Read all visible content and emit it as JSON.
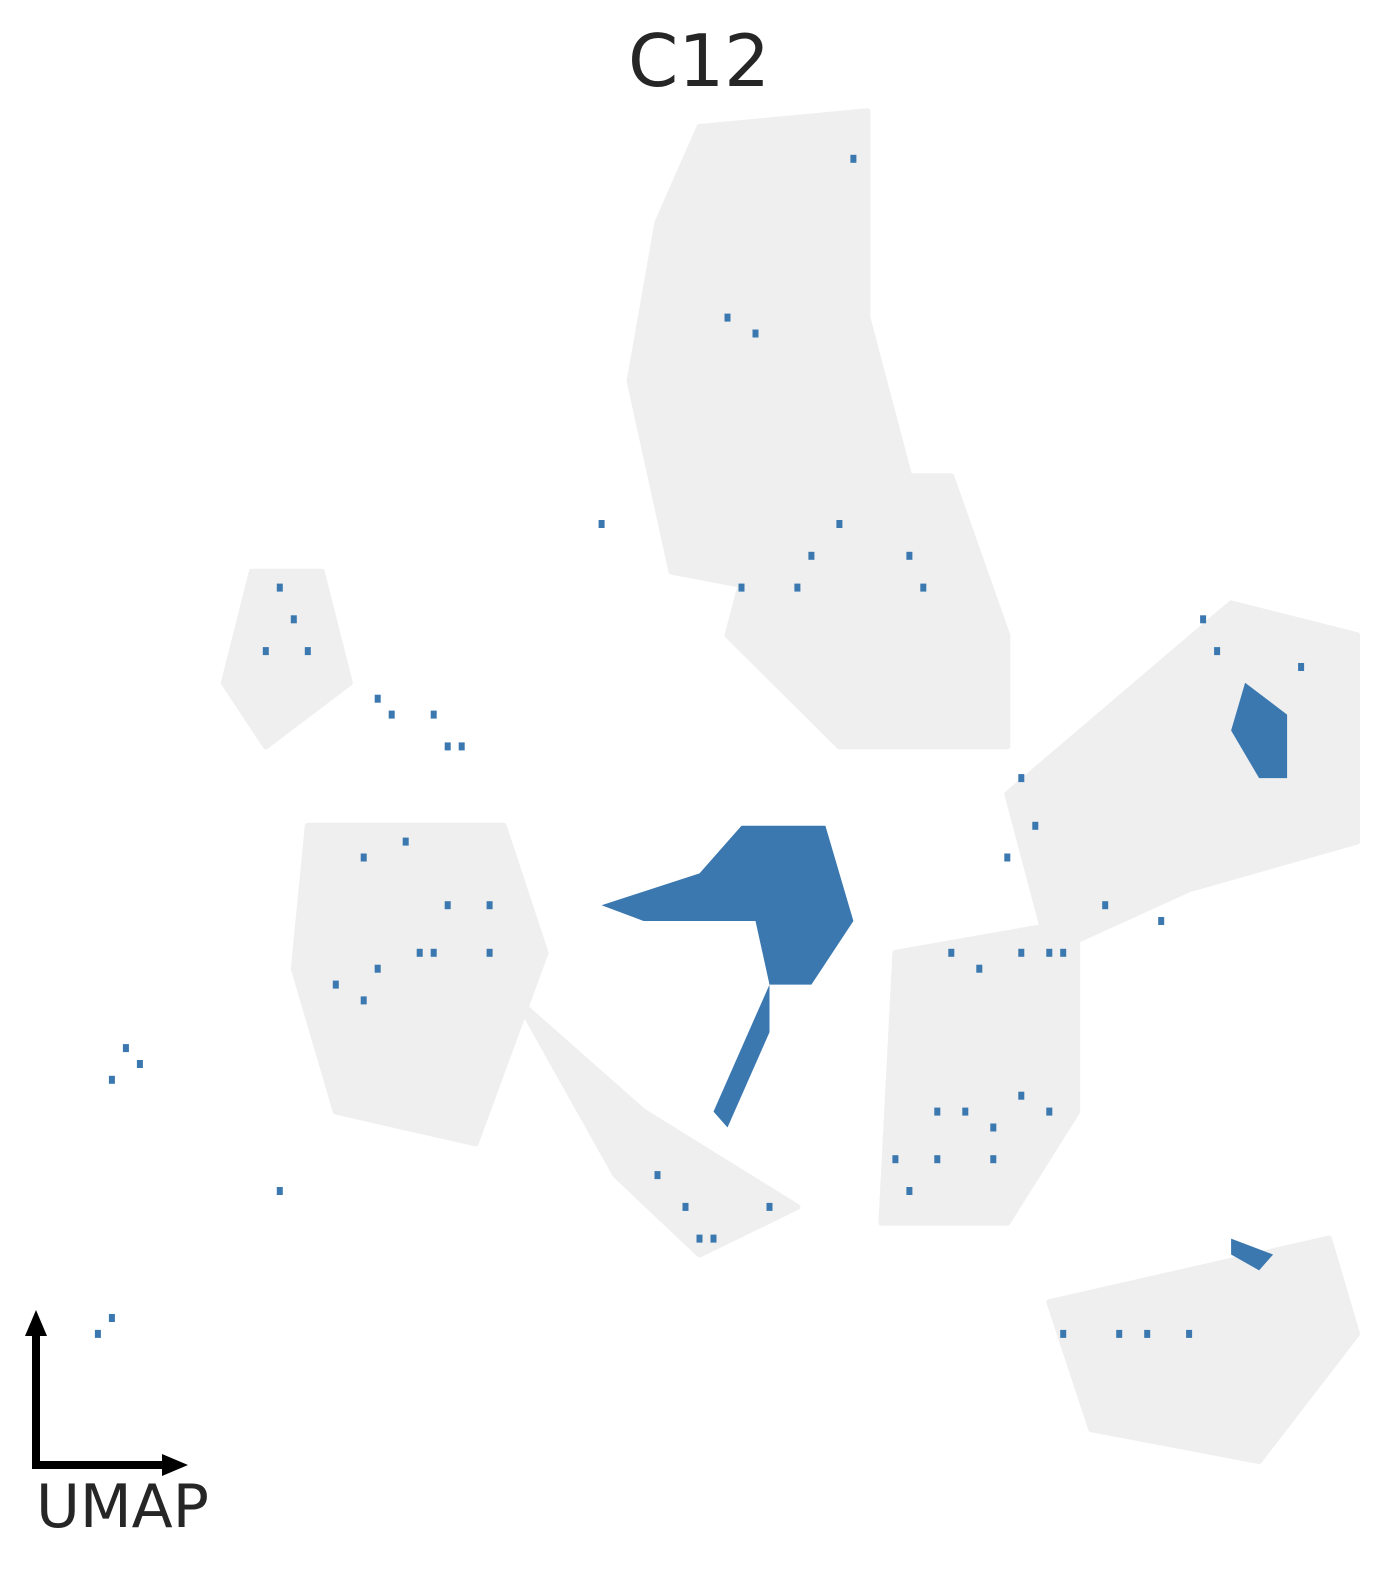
{
  "chart_data": {
    "type": "scatter",
    "title": "C12",
    "axis_label": "UMAP",
    "grid": false,
    "legend": "none",
    "colors": {
      "background_cells": "#efefef",
      "highlighted_cells": "#3b78b0",
      "axis_arrows": "#000000",
      "text": "#262626"
    },
    "series": [
      {
        "role": "background",
        "regions": [
          {
            "name": "top-cluster",
            "points": [
              [
                0.5,
                0.08
              ],
              [
                0.62,
                0.07
              ],
              [
                0.62,
                0.2
              ],
              [
                0.65,
                0.3
              ],
              [
                0.6,
                0.38
              ],
              [
                0.48,
                0.36
              ],
              [
                0.45,
                0.24
              ],
              [
                0.47,
                0.14
              ]
            ]
          },
          {
            "name": "upper-right-band",
            "points": [
              [
                0.55,
                0.3
              ],
              [
                0.68,
                0.3
              ],
              [
                0.72,
                0.4
              ],
              [
                0.72,
                0.47
              ],
              [
                0.6,
                0.47
              ],
              [
                0.52,
                0.4
              ]
            ]
          },
          {
            "name": "left-upper-cluster",
            "points": [
              [
                0.18,
                0.36
              ],
              [
                0.23,
                0.36
              ],
              [
                0.25,
                0.43
              ],
              [
                0.19,
                0.47
              ],
              [
                0.16,
                0.43
              ]
            ]
          },
          {
            "name": "left-main-cluster",
            "points": [
              [
                0.22,
                0.52
              ],
              [
                0.36,
                0.52
              ],
              [
                0.39,
                0.6
              ],
              [
                0.34,
                0.72
              ],
              [
                0.24,
                0.7
              ],
              [
                0.21,
                0.61
              ]
            ]
          },
          {
            "name": "right-arm",
            "points": [
              [
                0.72,
                0.5
              ],
              [
                0.88,
                0.38
              ],
              [
                0.97,
                0.4
              ],
              [
                0.97,
                0.53
              ],
              [
                0.85,
                0.56
              ],
              [
                0.75,
                0.6
              ]
            ]
          },
          {
            "name": "lower-middle",
            "points": [
              [
                0.37,
                0.63
              ],
              [
                0.46,
                0.7
              ],
              [
                0.57,
                0.76
              ],
              [
                0.5,
                0.79
              ],
              [
                0.44,
                0.74
              ]
            ]
          },
          {
            "name": "lower-right",
            "points": [
              [
                0.64,
                0.6
              ],
              [
                0.77,
                0.58
              ],
              [
                0.77,
                0.7
              ],
              [
                0.72,
                0.77
              ],
              [
                0.63,
                0.77
              ]
            ]
          },
          {
            "name": "bottom-right",
            "points": [
              [
                0.75,
                0.82
              ],
              [
                0.85,
                0.8
              ],
              [
                0.95,
                0.78
              ],
              [
                0.97,
                0.84
              ],
              [
                0.9,
                0.92
              ],
              [
                0.78,
                0.9
              ]
            ]
          }
        ]
      },
      {
        "role": "highlighted",
        "name": "C12",
        "regions": [
          {
            "name": "central-blob",
            "points": [
              [
                0.43,
                0.57
              ],
              [
                0.5,
                0.55
              ],
              [
                0.53,
                0.52
              ],
              [
                0.59,
                0.52
              ],
              [
                0.61,
                0.58
              ],
              [
                0.58,
                0.62
              ],
              [
                0.55,
                0.62
              ],
              [
                0.54,
                0.58
              ],
              [
                0.46,
                0.58
              ]
            ]
          },
          {
            "name": "tail",
            "points": [
              [
                0.55,
                0.62
              ],
              [
                0.54,
                0.64
              ],
              [
                0.51,
                0.7
              ],
              [
                0.52,
                0.71
              ],
              [
                0.55,
                0.65
              ]
            ]
          },
          {
            "name": "right-cluster-dense",
            "points": [
              [
                0.89,
                0.43
              ],
              [
                0.92,
                0.45
              ],
              [
                0.92,
                0.49
              ],
              [
                0.9,
                0.49
              ],
              [
                0.88,
                0.46
              ]
            ]
          },
          {
            "name": "bottom-right-dense",
            "points": [
              [
                0.88,
                0.78
              ],
              [
                0.91,
                0.79
              ],
              [
                0.9,
                0.8
              ],
              [
                0.88,
                0.79
              ]
            ]
          }
        ],
        "scatter": [
          [
            0.61,
            0.1
          ],
          [
            0.52,
            0.2
          ],
          [
            0.54,
            0.21
          ],
          [
            0.43,
            0.33
          ],
          [
            0.6,
            0.33
          ],
          [
            0.58,
            0.35
          ],
          [
            0.57,
            0.37
          ],
          [
            0.53,
            0.37
          ],
          [
            0.65,
            0.35
          ],
          [
            0.66,
            0.37
          ],
          [
            0.2,
            0.37
          ],
          [
            0.21,
            0.39
          ],
          [
            0.22,
            0.41
          ],
          [
            0.19,
            0.41
          ],
          [
            0.28,
            0.45
          ],
          [
            0.31,
            0.45
          ],
          [
            0.32,
            0.47
          ],
          [
            0.33,
            0.47
          ],
          [
            0.27,
            0.44
          ],
          [
            0.26,
            0.54
          ],
          [
            0.29,
            0.53
          ],
          [
            0.32,
            0.57
          ],
          [
            0.35,
            0.57
          ],
          [
            0.3,
            0.6
          ],
          [
            0.27,
            0.61
          ],
          [
            0.24,
            0.62
          ],
          [
            0.31,
            0.6
          ],
          [
            0.26,
            0.63
          ],
          [
            0.35,
            0.6
          ],
          [
            0.73,
            0.49
          ],
          [
            0.74,
            0.52
          ],
          [
            0.72,
            0.54
          ],
          [
            0.68,
            0.6
          ],
          [
            0.7,
            0.61
          ],
          [
            0.73,
            0.6
          ],
          [
            0.75,
            0.6
          ],
          [
            0.76,
            0.6
          ],
          [
            0.79,
            0.57
          ],
          [
            0.83,
            0.58
          ],
          [
            0.67,
            0.7
          ],
          [
            0.69,
            0.7
          ],
          [
            0.71,
            0.71
          ],
          [
            0.73,
            0.69
          ],
          [
            0.75,
            0.7
          ],
          [
            0.67,
            0.73
          ],
          [
            0.71,
            0.73
          ],
          [
            0.64,
            0.73
          ],
          [
            0.65,
            0.75
          ],
          [
            0.47,
            0.74
          ],
          [
            0.49,
            0.76
          ],
          [
            0.5,
            0.78
          ],
          [
            0.51,
            0.78
          ],
          [
            0.55,
            0.76
          ],
          [
            0.76,
            0.84
          ],
          [
            0.8,
            0.84
          ],
          [
            0.82,
            0.84
          ],
          [
            0.85,
            0.84
          ],
          [
            0.09,
            0.66
          ],
          [
            0.1,
            0.67
          ],
          [
            0.08,
            0.68
          ],
          [
            0.2,
            0.75
          ],
          [
            0.07,
            0.84
          ],
          [
            0.08,
            0.83
          ],
          [
            0.86,
            0.39
          ],
          [
            0.87,
            0.41
          ],
          [
            0.93,
            0.42
          ]
        ]
      }
    ]
  }
}
